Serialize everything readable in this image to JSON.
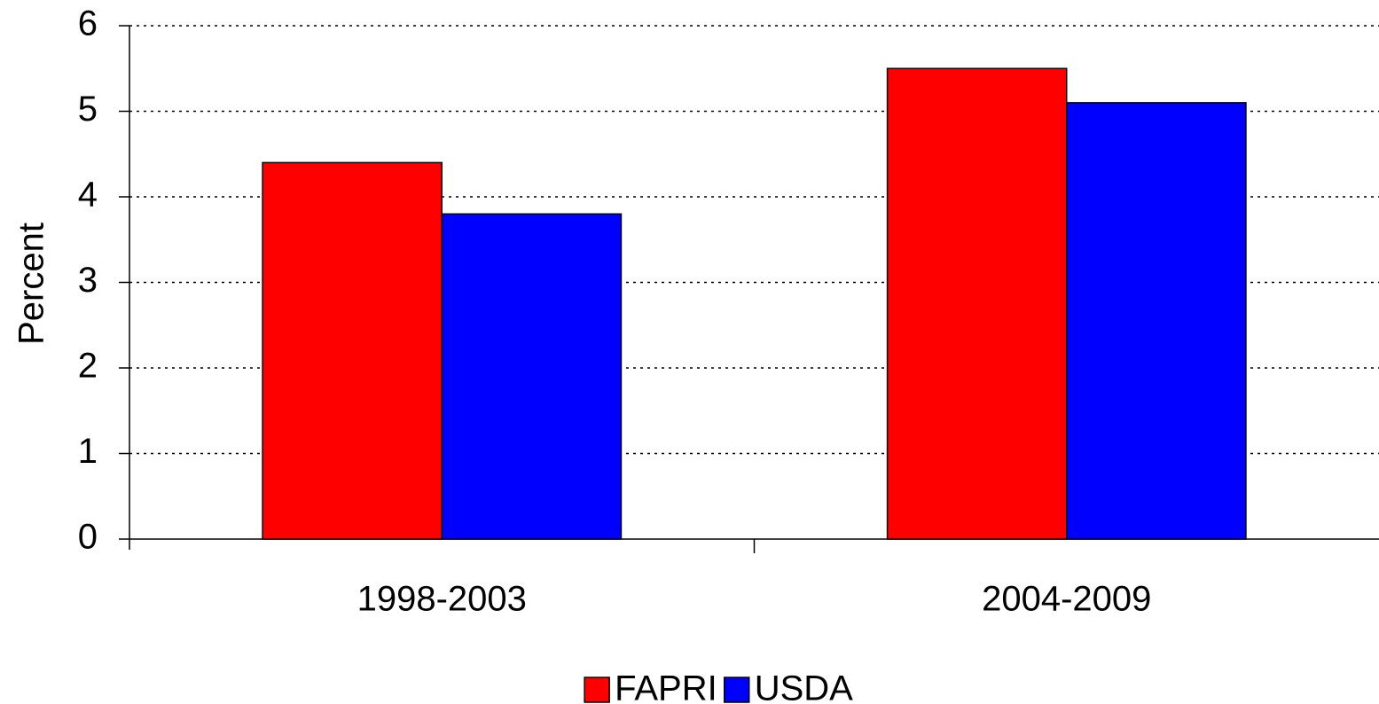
{
  "chart_data": {
    "type": "bar",
    "y_label": "Percent",
    "categories": [
      "1998-2003",
      "2004-2009"
    ],
    "series": [
      {
        "name": "FAPRI",
        "color": "#ff0000",
        "values": [
          4.4,
          5.5
        ]
      },
      {
        "name": "USDA",
        "color": "#0000ff",
        "values": [
          3.8,
          5.1
        ]
      }
    ],
    "ylim": [
      0,
      6
    ],
    "yticks": [
      0,
      1,
      2,
      3,
      4,
      5,
      6
    ],
    "grid": true,
    "legend": "bottom"
  }
}
